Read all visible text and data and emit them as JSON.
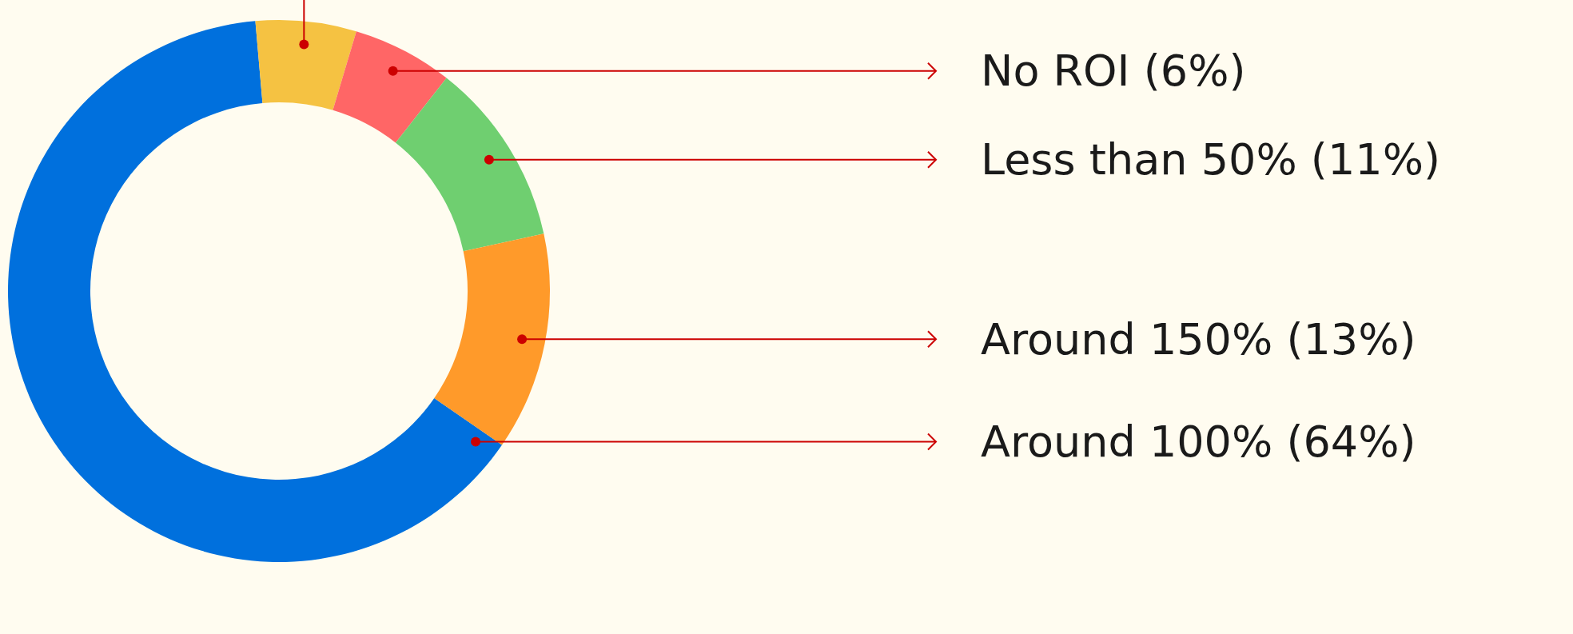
{
  "chart_data": {
    "type": "donut",
    "categories": [
      null,
      "No ROI (6%)",
      "Less than 50% (11%)",
      "Around 150% (13%)",
      "Around 100% (64%)"
    ],
    "values": [
      6,
      6,
      11,
      13,
      64
    ],
    "colors": [
      "#f5c242",
      "#ff6666",
      "#6fcf70",
      "#ff9a2a",
      "#0070dd"
    ]
  }
}
